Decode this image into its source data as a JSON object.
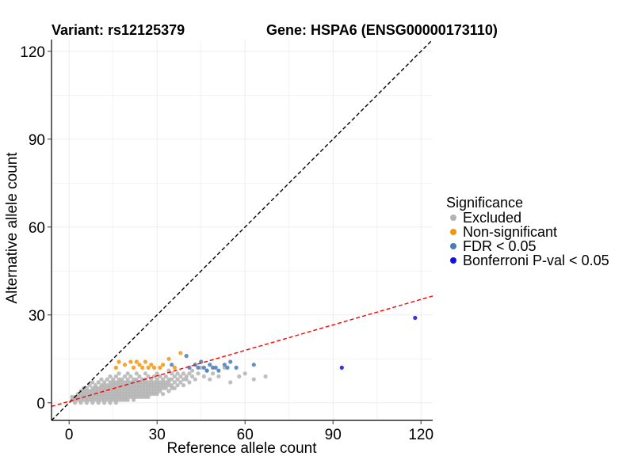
{
  "chart_data": {
    "type": "scatter",
    "title_left": "Variant: rs12125379",
    "title_right": "Gene: HSPA6 (ENSG00000173110)",
    "xlabel": "Reference allele count",
    "ylabel": "Alternative allele count",
    "xlim": [
      -6,
      124
    ],
    "ylim": [
      -6,
      124
    ],
    "xticks": [
      0,
      30,
      60,
      90,
      120
    ],
    "yticks": [
      0,
      30,
      60,
      90,
      120
    ],
    "grid": true,
    "legend": {
      "title": "Significance",
      "placement": "right",
      "items": [
        {
          "label": "Excluded",
          "color": "#b3b3b3"
        },
        {
          "label": "Non-significant",
          "color": "#f5950f"
        },
        {
          "label": "FDR < 0.05",
          "color": "#4a7ab8"
        },
        {
          "label": "Bonferroni P-val < 0.05",
          "color": "#1111e6"
        }
      ]
    },
    "reference_lines": [
      {
        "name": "identity",
        "slope": 1,
        "intercept": 0,
        "color": "#000000",
        "style": "dashed"
      },
      {
        "name": "fit",
        "slope": 0.29,
        "intercept": 0.5,
        "color": "#ff0000",
        "style": "dashed"
      }
    ],
    "series": [
      {
        "category": "Excluded",
        "color": "#b3b3b3",
        "points": [
          [
            1,
            2
          ],
          [
            1,
            1
          ],
          [
            2,
            0
          ],
          [
            2,
            1
          ],
          [
            2,
            2
          ],
          [
            3,
            1
          ],
          [
            3,
            2
          ],
          [
            3,
            3
          ],
          [
            4,
            0
          ],
          [
            4,
            1
          ],
          [
            4,
            2
          ],
          [
            4,
            3
          ],
          [
            4,
            4
          ],
          [
            5,
            1
          ],
          [
            5,
            2
          ],
          [
            5,
            3
          ],
          [
            5,
            4
          ],
          [
            5,
            5
          ],
          [
            6,
            0
          ],
          [
            6,
            1
          ],
          [
            6,
            2
          ],
          [
            6,
            3
          ],
          [
            6,
            4
          ],
          [
            6,
            5
          ],
          [
            7,
            1
          ],
          [
            7,
            2
          ],
          [
            7,
            3
          ],
          [
            7,
            4
          ],
          [
            7,
            6
          ],
          [
            8,
            0
          ],
          [
            8,
            1
          ],
          [
            8,
            2
          ],
          [
            8,
            3
          ],
          [
            8,
            4
          ],
          [
            8,
            5
          ],
          [
            8,
            7
          ],
          [
            9,
            1
          ],
          [
            9,
            2
          ],
          [
            9,
            3
          ],
          [
            9,
            4
          ],
          [
            9,
            5
          ],
          [
            9,
            6
          ],
          [
            10,
            0
          ],
          [
            10,
            1
          ],
          [
            10,
            2
          ],
          [
            10,
            3
          ],
          [
            10,
            4
          ],
          [
            10,
            5
          ],
          [
            10,
            7
          ],
          [
            11,
            1
          ],
          [
            11,
            2
          ],
          [
            11,
            3
          ],
          [
            11,
            4
          ],
          [
            11,
            5
          ],
          [
            11,
            6
          ],
          [
            11,
            8
          ],
          [
            12,
            0
          ],
          [
            12,
            1
          ],
          [
            12,
            2
          ],
          [
            12,
            3
          ],
          [
            12,
            4
          ],
          [
            12,
            5
          ],
          [
            12,
            6
          ],
          [
            12,
            7
          ],
          [
            13,
            1
          ],
          [
            13,
            2
          ],
          [
            13,
            3
          ],
          [
            13,
            4
          ],
          [
            13,
            5
          ],
          [
            13,
            6
          ],
          [
            13,
            8
          ],
          [
            14,
            0
          ],
          [
            14,
            1
          ],
          [
            14,
            2
          ],
          [
            14,
            3
          ],
          [
            14,
            4
          ],
          [
            14,
            5
          ],
          [
            14,
            6
          ],
          [
            14,
            7
          ],
          [
            14,
            9
          ],
          [
            15,
            1
          ],
          [
            15,
            2
          ],
          [
            15,
            3
          ],
          [
            15,
            4
          ],
          [
            15,
            5
          ],
          [
            15,
            6
          ],
          [
            15,
            7
          ],
          [
            15,
            8
          ],
          [
            16,
            0
          ],
          [
            16,
            1
          ],
          [
            16,
            2
          ],
          [
            16,
            3
          ],
          [
            16,
            4
          ],
          [
            16,
            5
          ],
          [
            16,
            6
          ],
          [
            16,
            7
          ],
          [
            16,
            9
          ],
          [
            17,
            1
          ],
          [
            17,
            2
          ],
          [
            17,
            3
          ],
          [
            17,
            4
          ],
          [
            17,
            5
          ],
          [
            17,
            6
          ],
          [
            17,
            7
          ],
          [
            17,
            8
          ],
          [
            17,
            10
          ],
          [
            18,
            1
          ],
          [
            18,
            2
          ],
          [
            18,
            3
          ],
          [
            18,
            4
          ],
          [
            18,
            5
          ],
          [
            18,
            6
          ],
          [
            18,
            7
          ],
          [
            18,
            8
          ],
          [
            19,
            1
          ],
          [
            19,
            2
          ],
          [
            19,
            3
          ],
          [
            19,
            4
          ],
          [
            19,
            5
          ],
          [
            19,
            6
          ],
          [
            19,
            7
          ],
          [
            19,
            9
          ],
          [
            20,
            1
          ],
          [
            20,
            2
          ],
          [
            20,
            3
          ],
          [
            20,
            4
          ],
          [
            20,
            5
          ],
          [
            20,
            6
          ],
          [
            20,
            7
          ],
          [
            20,
            8
          ],
          [
            20,
            10
          ],
          [
            21,
            2
          ],
          [
            21,
            3
          ],
          [
            21,
            4
          ],
          [
            21,
            5
          ],
          [
            21,
            6
          ],
          [
            21,
            7
          ],
          [
            21,
            9
          ],
          [
            22,
            1
          ],
          [
            22,
            2
          ],
          [
            22,
            3
          ],
          [
            22,
            4
          ],
          [
            22,
            5
          ],
          [
            22,
            6
          ],
          [
            22,
            7
          ],
          [
            22,
            8
          ],
          [
            23,
            2
          ],
          [
            23,
            3
          ],
          [
            23,
            4
          ],
          [
            23,
            5
          ],
          [
            23,
            6
          ],
          [
            23,
            7
          ],
          [
            23,
            8
          ],
          [
            23,
            10
          ],
          [
            24,
            2
          ],
          [
            24,
            3
          ],
          [
            24,
            4
          ],
          [
            24,
            5
          ],
          [
            24,
            6
          ],
          [
            24,
            7
          ],
          [
            24,
            9
          ],
          [
            25,
            2
          ],
          [
            25,
            3
          ],
          [
            25,
            4
          ],
          [
            25,
            5
          ],
          [
            25,
            6
          ],
          [
            25,
            7
          ],
          [
            25,
            8
          ],
          [
            26,
            2
          ],
          [
            26,
            3
          ],
          [
            26,
            4
          ],
          [
            26,
            5
          ],
          [
            26,
            6
          ],
          [
            26,
            7
          ],
          [
            26,
            8
          ],
          [
            26,
            10
          ],
          [
            27,
            2
          ],
          [
            27,
            3
          ],
          [
            27,
            4
          ],
          [
            27,
            5
          ],
          [
            27,
            6
          ],
          [
            27,
            7
          ],
          [
            27,
            9
          ],
          [
            28,
            3
          ],
          [
            28,
            4
          ],
          [
            28,
            5
          ],
          [
            28,
            6
          ],
          [
            28,
            7
          ],
          [
            28,
            8
          ],
          [
            29,
            3
          ],
          [
            29,
            4
          ],
          [
            29,
            5
          ],
          [
            29,
            6
          ],
          [
            29,
            7
          ],
          [
            29,
            9
          ],
          [
            30,
            3
          ],
          [
            30,
            4
          ],
          [
            30,
            5
          ],
          [
            30,
            6
          ],
          [
            30,
            7
          ],
          [
            30,
            8
          ],
          [
            30,
            10
          ],
          [
            31,
            4
          ],
          [
            31,
            5
          ],
          [
            31,
            6
          ],
          [
            31,
            7
          ],
          [
            31,
            9
          ],
          [
            32,
            3
          ],
          [
            32,
            5
          ],
          [
            32,
            6
          ],
          [
            32,
            7
          ],
          [
            32,
            8
          ],
          [
            33,
            5
          ],
          [
            33,
            6
          ],
          [
            33,
            7
          ],
          [
            33,
            9
          ],
          [
            34,
            4
          ],
          [
            34,
            6
          ],
          [
            34,
            7
          ],
          [
            34,
            8
          ],
          [
            34,
            11
          ],
          [
            35,
            5
          ],
          [
            35,
            6
          ],
          [
            35,
            8
          ],
          [
            35,
            10
          ],
          [
            36,
            5
          ],
          [
            36,
            7
          ],
          [
            36,
            9
          ],
          [
            37,
            6
          ],
          [
            37,
            8
          ],
          [
            37,
            10
          ],
          [
            38,
            7
          ],
          [
            38,
            9
          ],
          [
            39,
            6
          ],
          [
            39,
            8
          ],
          [
            39,
            10
          ],
          [
            40,
            8
          ],
          [
            40,
            9
          ],
          [
            41,
            7
          ],
          [
            41,
            10
          ],
          [
            42,
            9
          ],
          [
            42,
            11
          ],
          [
            43,
            8
          ],
          [
            44,
            10
          ],
          [
            45,
            12
          ],
          [
            46,
            9
          ],
          [
            47,
            11
          ],
          [
            48,
            8
          ],
          [
            49,
            10
          ],
          [
            51,
            9
          ],
          [
            53,
            12
          ],
          [
            55,
            7
          ],
          [
            58,
            9
          ],
          [
            60,
            10
          ],
          [
            63,
            8
          ],
          [
            67,
            9
          ]
        ]
      },
      {
        "category": "Non-significant",
        "color": "#f5950f",
        "points": [
          [
            16,
            12
          ],
          [
            17,
            14
          ],
          [
            19,
            13
          ],
          [
            21,
            14
          ],
          [
            22,
            12
          ],
          [
            23,
            14
          ],
          [
            24,
            13
          ],
          [
            25,
            12
          ],
          [
            26,
            14
          ],
          [
            27,
            12
          ],
          [
            28,
            13
          ],
          [
            29,
            12
          ],
          [
            31,
            12
          ],
          [
            32,
            13
          ],
          [
            34,
            15
          ],
          [
            36,
            12
          ],
          [
            38,
            17
          ]
        ]
      },
      {
        "category": "FDR < 0.05",
        "color": "#4a7ab8",
        "points": [
          [
            35,
            13
          ],
          [
            40,
            16
          ],
          [
            41,
            12
          ],
          [
            43,
            13
          ],
          [
            44,
            12
          ],
          [
            45,
            14
          ],
          [
            46,
            12
          ],
          [
            47,
            11
          ],
          [
            48,
            13
          ],
          [
            49,
            12
          ],
          [
            50,
            12
          ],
          [
            51,
            11
          ],
          [
            53,
            13
          ],
          [
            54,
            12
          ],
          [
            55,
            14
          ],
          [
            57,
            12
          ],
          [
            63,
            13
          ]
        ]
      },
      {
        "category": "Bonferroni P-val < 0.05",
        "color": "#1111e6",
        "points": [
          [
            93,
            12
          ],
          [
            118,
            29
          ]
        ]
      }
    ]
  }
}
